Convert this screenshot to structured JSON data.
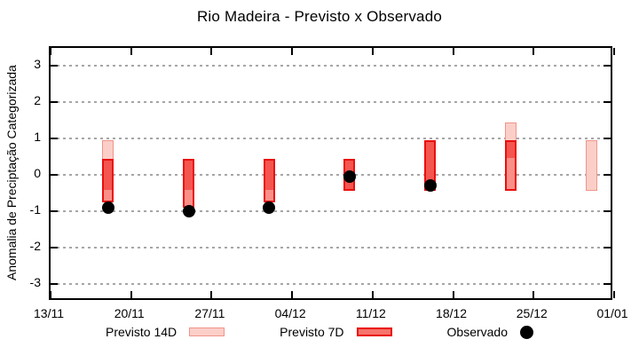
{
  "page": {
    "background": "#ffffff"
  },
  "chart_data": {
    "type": "bar",
    "subtype": "floating-range-bars-with-scatter-overlay",
    "title": "Rio Madeira - Previsto x Observado",
    "ylabel": "Anomalia de Preciptação Categorizada",
    "xlabel": "",
    "x_tick_labels": [
      "13/11",
      "20/11",
      "27/11",
      "04/12",
      "11/12",
      "18/12",
      "25/12",
      "01/01"
    ],
    "x_tick_days": [
      0,
      7,
      14,
      21,
      28,
      35,
      42,
      49
    ],
    "x_range_days": [
      0,
      49
    ],
    "ylim": [
      -3.5,
      3.5
    ],
    "y_ticks": [
      3,
      2,
      1,
      0,
      -1,
      -2,
      -3
    ],
    "grid": {
      "horizontal": true,
      "style": "dotted",
      "color": "#a6a6a6"
    },
    "bar_width_days": 1,
    "legend_position": "bottom",
    "colors": {
      "previsto14_fill": "#fbcfc8",
      "previsto14_border": "#f1948a",
      "previsto7_fill": "#fa8f88",
      "overlap_fill": "#f4554f",
      "previsto7_border": "#e90f0e",
      "observado": "#000000"
    },
    "series": [
      {
        "name": "Previsto 14D",
        "kind": "range",
        "points": [
          {
            "day": 5,
            "date": "18/11",
            "low": -0.45,
            "high": 0.95
          },
          {
            "day": 12,
            "date": "25/11",
            "low": -0.45,
            "high": 0.45
          },
          {
            "day": 19,
            "date": "02/12",
            "low": -0.45,
            "high": 0.45
          },
          {
            "day": 26,
            "date": "09/12",
            "low": -0.45,
            "high": 0.45
          },
          {
            "day": 33,
            "date": "16/12",
            "low": -0.45,
            "high": 0.95
          },
          {
            "day": 40,
            "date": "23/12",
            "low": 0.45,
            "high": 1.45
          },
          {
            "day": 47,
            "date": "30/12",
            "low": -0.45,
            "high": 0.95
          }
        ]
      },
      {
        "name": "Previsto 7D",
        "kind": "range",
        "points": [
          {
            "day": 5,
            "date": "18/11",
            "low": -0.75,
            "high": 0.45
          },
          {
            "day": 12,
            "date": "25/11",
            "low": -0.9,
            "high": 0.45
          },
          {
            "day": 19,
            "date": "02/12",
            "low": -0.75,
            "high": 0.45
          },
          {
            "day": 26,
            "date": "09/12",
            "low": -0.45,
            "high": 0.45
          },
          {
            "day": 33,
            "date": "16/12",
            "low": -0.45,
            "high": 0.95
          },
          {
            "day": 40,
            "date": "23/12",
            "low": -0.45,
            "high": 0.95
          }
        ]
      },
      {
        "name": "Observado",
        "kind": "scatter",
        "points": [
          {
            "day": 5,
            "date": "18/11",
            "value": -0.9
          },
          {
            "day": 12,
            "date": "25/11",
            "value": -1.0
          },
          {
            "day": 19,
            "date": "02/12",
            "value": -0.9
          },
          {
            "day": 26,
            "date": "09/12",
            "value": -0.05
          },
          {
            "day": 33,
            "date": "16/12",
            "value": -0.3
          }
        ]
      }
    ]
  }
}
